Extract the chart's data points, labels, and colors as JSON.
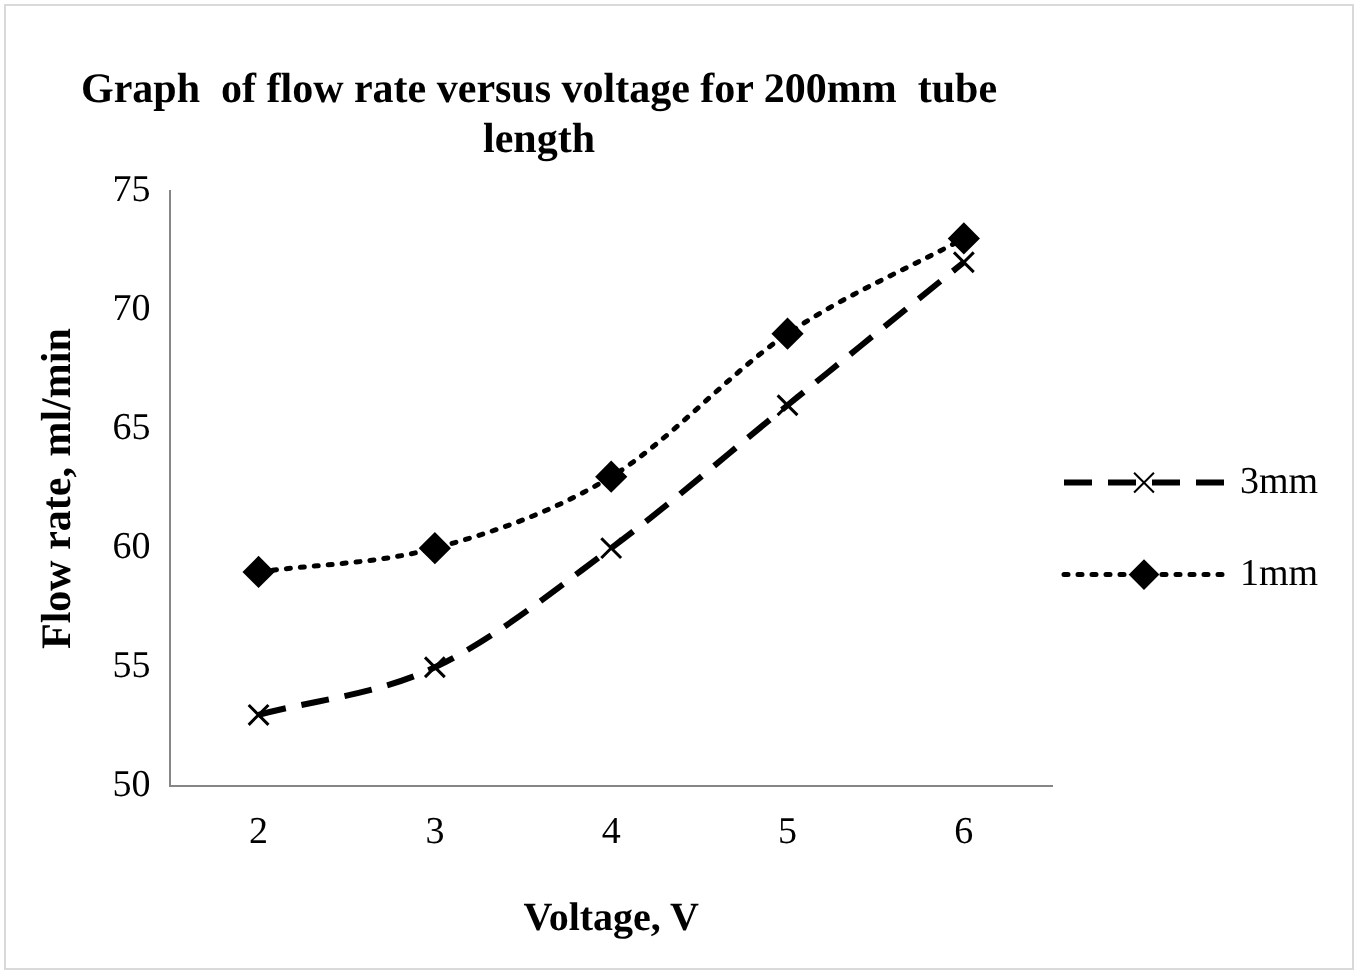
{
  "chart_data": {
    "type": "line",
    "title": "Graph  of flow rate versus voltage for 200mm  tube length",
    "xlabel": "Voltage, V",
    "ylabel": "Flow rate, ml/min",
    "categories": [
      "2",
      "3",
      "4",
      "5",
      "6"
    ],
    "series": [
      {
        "name": "3mm",
        "color": "#000000",
        "values": [
          53,
          55,
          60,
          66,
          72
        ],
        "marker": "cross",
        "line_style": "dashed"
      },
      {
        "name": "1mm",
        "color": "#000000",
        "values": [
          59,
          60,
          63,
          69,
          73
        ],
        "marker": "diamond",
        "line_style": "dotted"
      }
    ],
    "ylim": [
      50,
      75
    ],
    "yticks": [
      50,
      55,
      60,
      65,
      70,
      75
    ],
    "grid": false,
    "legend": "right"
  }
}
